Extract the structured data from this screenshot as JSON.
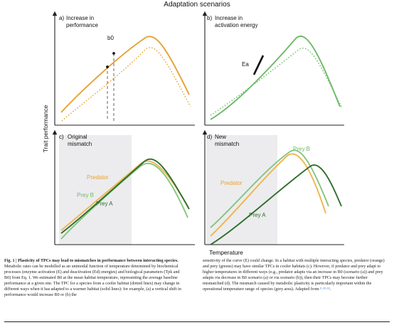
{
  "title": "Adaptation scenarios",
  "axes": {
    "y_label": "Trait performance",
    "x_label": "Temperature"
  },
  "colors": {
    "predator": "#eeb64f",
    "prey_a": "#2f6e2d",
    "prey_b": "#86c47e",
    "panel_a": "#e7a234",
    "panel_b": "#6fba67",
    "mismatch_area": "#ececee"
  },
  "panels": {
    "a": {
      "letter": "a)",
      "title_1": "Increase in",
      "title_2": "performance",
      "marker": "b0"
    },
    "b": {
      "letter": "b)",
      "title_1": "Increase in",
      "title_2": "activation energy",
      "marker": "Ea"
    },
    "c": {
      "letter": "c)",
      "title_1": "Original",
      "title_2": "mismatch",
      "labels": [
        "Predator",
        "Prey B",
        "Prey A"
      ]
    },
    "d": {
      "letter": "d)",
      "title_1": "New",
      "title_2": "mismatch",
      "labels": [
        "Prey B",
        "Predator",
        "Prey A"
      ]
    }
  },
  "caption": {
    "heading": "Fig. 1 | Plasticity of TPCs may lead to mismatches in performance between interacting species.",
    "left_body": "Metabolic rates can be modelled as an unimodal function of temperature determined by biochemical processes (enzyme activation (E) and deactivation (Ed) energies) and biological parameters (Tpk and B0) from Eq. 1. We estimated B0 at the mean habitat temperature, representing the average baseline performance at a given site. The TPC for a species from a cooler habitat (dotted lines) may change in different ways when it has adapted to a warmer habitat (solid lines): for example, (a) a vertical shift in performance would increase B0 or (b) the",
    "right_body": "sensitivity of the curve (E) could change. In a habitat with multiple interacting species, predator (orange) and prey (greens) may have similar TPCs in cooler habitats (c). However, if predator and prey adapt to higher temperatures in different ways (e.g., predator adapts via an increase in B0 (scenario (a)) and prey adapts via decrease in B0 scenario (a) or via scenario (b)), then their TPCs may become further mismatched (d). The mismatch caused by metabolic plasticity is particularly important within the operational temperature range of species (grey area). Adapted from"
  }
}
